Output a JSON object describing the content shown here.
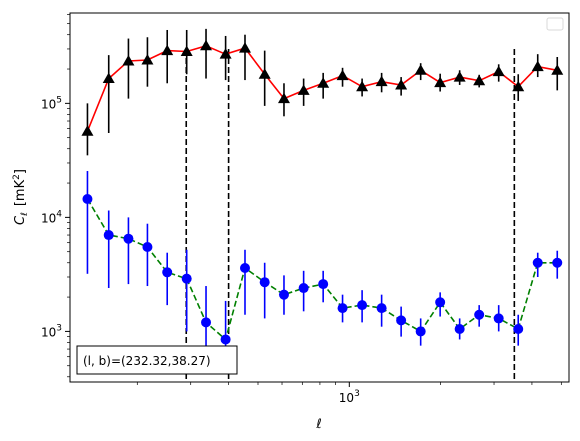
{
  "chart_data": {
    "type": "scatter",
    "title": "",
    "xlabel": "ℓ",
    "ylabel_main": "C",
    "ylabel_sub": "ℓ",
    "ylabel_unit_pre": "[mK",
    "ylabel_unit_sup": "2",
    "ylabel_unit_post": "]",
    "xscale": "log",
    "yscale": "log",
    "xlim": [
      120,
      5300
    ],
    "ylim": [
      360,
      620000
    ],
    "x_tick_labels": [
      {
        "value": 1000,
        "base": "10",
        "exp": "3"
      }
    ],
    "y_tick_labels": [
      {
        "value": 1000,
        "base": "10",
        "exp": "3"
      },
      {
        "value": 10000,
        "base": "10",
        "exp": "4"
      },
      {
        "value": 100000,
        "base": "10",
        "exp": "5"
      }
    ],
    "legend": {
      "placement": "top-right",
      "entries": []
    },
    "annotation": "(l, b)=(232.32,38.27)",
    "vlines": [
      290,
      400,
      3500
    ],
    "vline_ymax": 300000,
    "series": [
      {
        "color": "#ff0000",
        "marker": "triangle",
        "marker_color": "#000000",
        "linestyle": "solid",
        "x": [
          137,
          161,
          187,
          216,
          251,
          291,
          337,
          391,
          453,
          526,
          609,
          707,
          820,
          950,
          1102,
          1278,
          1482,
          1719,
          1993,
          2311,
          2680,
          3108,
          3605,
          4180,
          4848
        ],
        "y": [
          57000,
          165000,
          235000,
          240000,
          290000,
          285000,
          320000,
          270000,
          305000,
          180000,
          110000,
          130000,
          150000,
          175000,
          140000,
          155000,
          145000,
          195000,
          152000,
          170000,
          158000,
          190000,
          140000,
          210000,
          195000
        ],
        "err_low": [
          22000,
          110000,
          125000,
          100000,
          140000,
          105000,
          155000,
          110000,
          145000,
          85000,
          33000,
          35000,
          40000,
          35000,
          25000,
          30000,
          28000,
          35000,
          25000,
          25000,
          20000,
          35000,
          35000,
          40000,
          65000
        ],
        "err_high": [
          43000,
          100000,
          135000,
          140000,
          150000,
          155000,
          130000,
          120000,
          95000,
          110000,
          40000,
          35000,
          35000,
          30000,
          25000,
          30000,
          25000,
          30000,
          30000,
          25000,
          20000,
          30000,
          40000,
          60000,
          60000
        ]
      },
      {
        "color": "#008000",
        "marker": "circle",
        "marker_color": "#0000ff",
        "linestyle": "dashed",
        "x": [
          137,
          161,
          187,
          216,
          251,
          291,
          337,
          391,
          453,
          526,
          609,
          707,
          820,
          950,
          1102,
          1278,
          1482,
          1719,
          1993,
          2311,
          2680,
          3108,
          3605,
          4180,
          4848
        ],
        "y": [
          14500,
          7000,
          6500,
          5500,
          3300,
          2900,
          1200,
          850,
          3600,
          2700,
          2100,
          2400,
          2600,
          1600,
          1700,
          1600,
          1250,
          1000,
          1800,
          1050,
          1400,
          1300,
          1050,
          4000,
          4000
        ],
        "err_low": [
          11300,
          4600,
          3900,
          3000,
          1600,
          1900,
          500,
          250,
          2200,
          1400,
          700,
          900,
          800,
          400,
          500,
          500,
          350,
          250,
          450,
          200,
          300,
          300,
          300,
          1000,
          1100
        ],
        "err_high": [
          11000,
          4500,
          3500,
          3300,
          1600,
          2300,
          1300,
          1000,
          1600,
          1300,
          1000,
          1000,
          800,
          500,
          600,
          500,
          400,
          300,
          400,
          250,
          300,
          400,
          350,
          900,
          1100
        ]
      }
    ]
  }
}
